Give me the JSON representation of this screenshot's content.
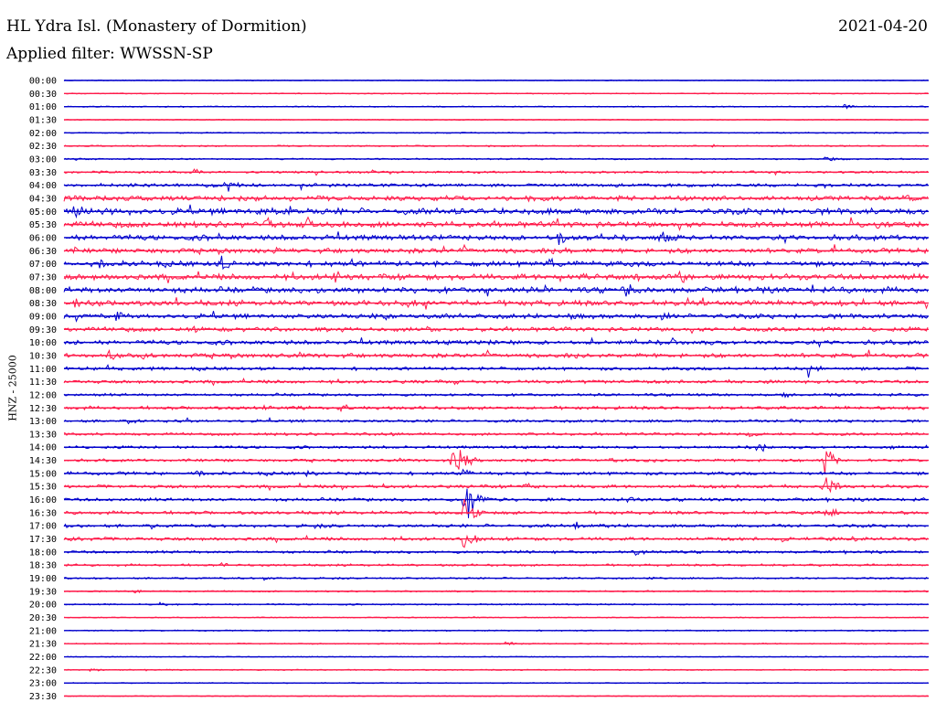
{
  "header": {
    "station": "HL Ydra Isl. (Monastery of Dormition)",
    "date": "2021-04-20",
    "filter": "Applied filter: WWSSN-SP"
  },
  "chart_data": {
    "type": "seismogram-helicorder",
    "ylabel": "HNZ - 25000",
    "colors": [
      "#0000cc",
      "#ff1a4a"
    ],
    "rows": [
      {
        "label": "00:00",
        "activity": 0.02,
        "events": []
      },
      {
        "label": "00:30",
        "activity": 0.05,
        "events": []
      },
      {
        "label": "01:00",
        "activity": 0.08,
        "events": [
          {
            "x": 0.9,
            "amp": 4
          }
        ]
      },
      {
        "label": "01:30",
        "activity": 0.03,
        "events": []
      },
      {
        "label": "02:00",
        "activity": 0.1,
        "events": []
      },
      {
        "label": "02:30",
        "activity": 0.12,
        "events": [
          {
            "x": 0.75,
            "amp": 4
          }
        ]
      },
      {
        "label": "03:00",
        "activity": 0.15,
        "events": [
          {
            "x": 0.01,
            "amp": 3
          },
          {
            "x": 0.88,
            "amp": 5
          }
        ]
      },
      {
        "label": "03:30",
        "activity": 0.3,
        "events": [
          {
            "x": 0.15,
            "amp": 4
          },
          {
            "x": 0.29,
            "amp": 4
          }
        ]
      },
      {
        "label": "04:00",
        "activity": 0.5,
        "events": [
          {
            "x": 0.16,
            "amp": 6
          },
          {
            "x": 0.19,
            "amp": 7
          }
        ]
      },
      {
        "label": "04:30",
        "activity": 0.8,
        "events": [
          {
            "x": 0.65,
            "amp": 8
          },
          {
            "x": 0.97,
            "amp": 7
          },
          {
            "x": 0.0,
            "amp": 6
          }
        ]
      },
      {
        "label": "05:00",
        "activity": 1.1,
        "events": [
          {
            "x": 0.01,
            "amp": 14
          },
          {
            "x": 0.22,
            "amp": 8
          },
          {
            "x": 0.45,
            "amp": 6
          }
        ]
      },
      {
        "label": "05:30",
        "activity": 1.0,
        "events": [
          {
            "x": 0.23,
            "amp": 14
          },
          {
            "x": 0.28,
            "amp": 10
          },
          {
            "x": 0.94,
            "amp": 8
          }
        ]
      },
      {
        "label": "06:00",
        "activity": 0.9,
        "events": [
          {
            "x": 0.57,
            "amp": 14
          },
          {
            "x": 0.69,
            "amp": 13
          },
          {
            "x": 0.42,
            "amp": 6
          }
        ]
      },
      {
        "label": "06:30",
        "activity": 0.8,
        "events": [
          {
            "x": 0.24,
            "amp": 7
          },
          {
            "x": 0.58,
            "amp": 6
          }
        ]
      },
      {
        "label": "07:00",
        "activity": 0.9,
        "events": [
          {
            "x": 0.18,
            "amp": 14
          },
          {
            "x": 0.56,
            "amp": 10
          },
          {
            "x": 0.04,
            "amp": 7
          }
        ]
      },
      {
        "label": "07:30",
        "activity": 1.0,
        "events": [
          {
            "x": 0.31,
            "amp": 10
          },
          {
            "x": 0.71,
            "amp": 11
          },
          {
            "x": 0.6,
            "amp": 7
          }
        ]
      },
      {
        "label": "08:00",
        "activity": 1.0,
        "events": [
          {
            "x": 0.65,
            "amp": 12
          },
          {
            "x": 0.29,
            "amp": 8
          }
        ]
      },
      {
        "label": "08:30",
        "activity": 0.9,
        "events": [
          {
            "x": 0.01,
            "amp": 8
          },
          {
            "x": 0.72,
            "amp": 9
          }
        ]
      },
      {
        "label": "09:00",
        "activity": 0.8,
        "events": [
          {
            "x": 0.06,
            "amp": 8
          },
          {
            "x": 0.37,
            "amp": 7
          },
          {
            "x": 0.58,
            "amp": 6
          },
          {
            "x": 0.69,
            "amp": 7
          }
        ]
      },
      {
        "label": "09:30",
        "activity": 0.7,
        "events": [
          {
            "x": 0.15,
            "amp": 6
          },
          {
            "x": 0.42,
            "amp": 6
          }
        ]
      },
      {
        "label": "10:00",
        "activity": 0.7,
        "events": [
          {
            "x": 0.7,
            "amp": 8
          },
          {
            "x": 0.49,
            "amp": 6
          }
        ]
      },
      {
        "label": "10:30",
        "activity": 0.7,
        "events": [
          {
            "x": 0.05,
            "amp": 9
          },
          {
            "x": 0.09,
            "amp": 7
          }
        ]
      },
      {
        "label": "11:00",
        "activity": 0.5,
        "events": [
          {
            "x": 0.86,
            "amp": 12
          },
          {
            "x": 0.05,
            "amp": 6
          }
        ]
      },
      {
        "label": "11:30",
        "activity": 0.5,
        "events": [
          {
            "x": 0.45,
            "amp": 5
          },
          {
            "x": 0.6,
            "amp": 5
          }
        ]
      },
      {
        "label": "12:00",
        "activity": 0.4,
        "events": [
          {
            "x": 0.83,
            "amp": 5
          }
        ]
      },
      {
        "label": "12:30",
        "activity": 0.5,
        "events": [
          {
            "x": 0.23,
            "amp": 6
          },
          {
            "x": 0.32,
            "amp": 6
          }
        ]
      },
      {
        "label": "13:00",
        "activity": 0.4,
        "events": [
          {
            "x": 0.08,
            "amp": 5
          },
          {
            "x": 0.14,
            "amp": 5
          },
          {
            "x": 0.84,
            "amp": 5
          }
        ]
      },
      {
        "label": "13:30",
        "activity": 0.4,
        "events": [
          {
            "x": 0.37,
            "amp": 6
          },
          {
            "x": 0.79,
            "amp": 6
          }
        ]
      },
      {
        "label": "14:00",
        "activity": 0.4,
        "events": [
          {
            "x": 0.8,
            "amp": 9
          },
          {
            "x": 0.95,
            "amp": 5
          }
        ]
      },
      {
        "label": "14:30",
        "activity": 0.4,
        "events": [
          {
            "x": 0.45,
            "amp": 30
          },
          {
            "x": 0.63,
            "amp": 5
          },
          {
            "x": 0.88,
            "amp": 20
          }
        ]
      },
      {
        "label": "15:00",
        "activity": 0.5,
        "events": [
          {
            "x": 0.15,
            "amp": 6
          },
          {
            "x": 0.28,
            "amp": 6
          },
          {
            "x": 0.46,
            "amp": 8
          }
        ]
      },
      {
        "label": "15:30",
        "activity": 0.5,
        "events": [
          {
            "x": 0.88,
            "amp": 16
          },
          {
            "x": 0.53,
            "amp": 6
          },
          {
            "x": 0.32,
            "amp": 5
          }
        ]
      },
      {
        "label": "16:00",
        "activity": 0.5,
        "events": [
          {
            "x": 0.46,
            "amp": 40
          },
          {
            "x": 0.65,
            "amp": 7
          },
          {
            "x": 0.56,
            "amp": 6
          }
        ]
      },
      {
        "label": "16:30",
        "activity": 0.5,
        "events": [
          {
            "x": 0.46,
            "amp": 24
          },
          {
            "x": 0.88,
            "amp": 10
          }
        ]
      },
      {
        "label": "17:00",
        "activity": 0.5,
        "events": [
          {
            "x": 0.59,
            "amp": 7
          },
          {
            "x": 0.29,
            "amp": 6
          }
        ]
      },
      {
        "label": "17:30",
        "activity": 0.5,
        "events": [
          {
            "x": 0.46,
            "amp": 20
          },
          {
            "x": 0.91,
            "amp": 6
          },
          {
            "x": 0.83,
            "amp": 5
          },
          {
            "x": 0.0,
            "amp": 5
          }
        ]
      },
      {
        "label": "18:00",
        "activity": 0.4,
        "events": [
          {
            "x": 0.66,
            "amp": 7
          },
          {
            "x": 0.52,
            "amp": 5
          }
        ]
      },
      {
        "label": "18:30",
        "activity": 0.3,
        "events": [
          {
            "x": 0.18,
            "amp": 4
          }
        ]
      },
      {
        "label": "19:00",
        "activity": 0.2,
        "events": [
          {
            "x": 0.23,
            "amp": 3
          },
          {
            "x": 0.31,
            "amp": 3
          },
          {
            "x": 0.67,
            "amp": 3
          }
        ]
      },
      {
        "label": "19:30",
        "activity": 0.15,
        "events": [
          {
            "x": 0.08,
            "amp": 3
          }
        ]
      },
      {
        "label": "20:00",
        "activity": 0.15,
        "events": [
          {
            "x": 0.11,
            "amp": 3
          }
        ]
      },
      {
        "label": "20:30",
        "activity": 0.05,
        "events": []
      },
      {
        "label": "21:00",
        "activity": 0.1,
        "events": []
      },
      {
        "label": "21:30",
        "activity": 0.1,
        "events": [
          {
            "x": 0.51,
            "amp": 4
          }
        ]
      },
      {
        "label": "22:00",
        "activity": 0.03,
        "events": []
      },
      {
        "label": "22:30",
        "activity": 0.08,
        "events": [
          {
            "x": 0.03,
            "amp": 3
          }
        ]
      },
      {
        "label": "23:00",
        "activity": 0.05,
        "events": []
      },
      {
        "label": "23:30",
        "activity": 0.03,
        "events": []
      }
    ]
  }
}
